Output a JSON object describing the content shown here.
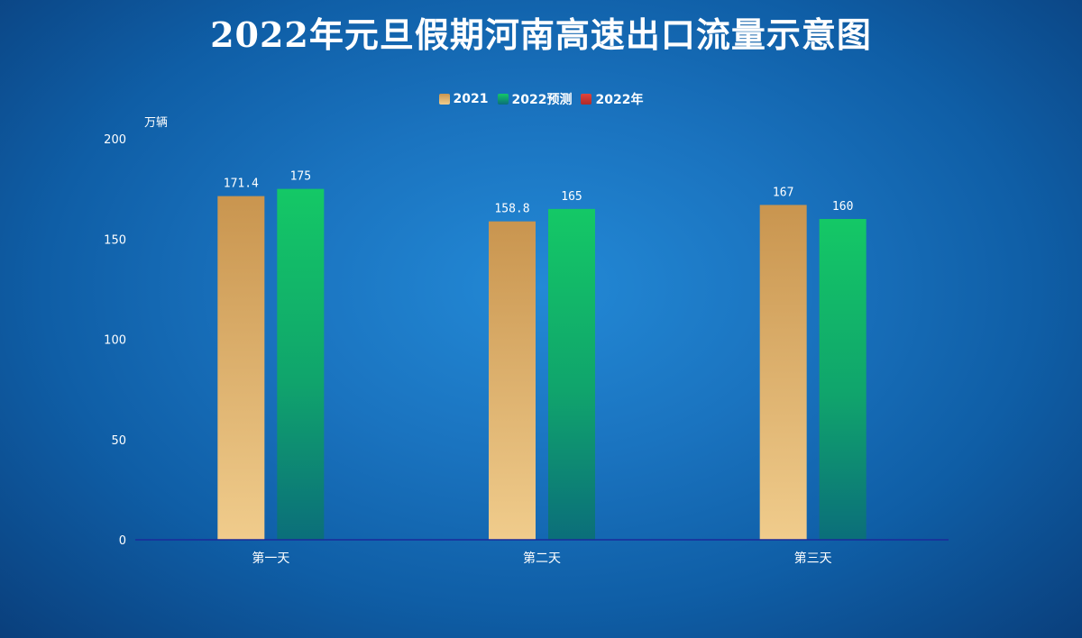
{
  "chart_data": {
    "type": "bar",
    "title": "2022年元旦假期河南高速出口流量示意图",
    "ylabel": "万辆",
    "ylim": [
      0,
      200
    ],
    "yticks": [
      0,
      50,
      100,
      150,
      200
    ],
    "categories": [
      "第一天",
      "第二天",
      "第三天"
    ],
    "legend_position": "top-center",
    "grid": false,
    "series": [
      {
        "name": "2021",
        "values": [
          171.4,
          158.8,
          167
        ],
        "labels": [
          "171.4",
          "158.8",
          "167"
        ],
        "color_top": "#c9954f",
        "color_bottom": "#f0cc8c"
      },
      {
        "name": "2022预测",
        "values": [
          175,
          165,
          160
        ],
        "labels": [
          "175",
          "165",
          "160"
        ],
        "color_top": "#14c866",
        "color_bottom": "#0b6e7a"
      },
      {
        "name": "2022年",
        "values": [
          null,
          null,
          null
        ],
        "labels": [],
        "color_top": "#e0443a",
        "color_bottom": "#b02a2a"
      }
    ]
  }
}
